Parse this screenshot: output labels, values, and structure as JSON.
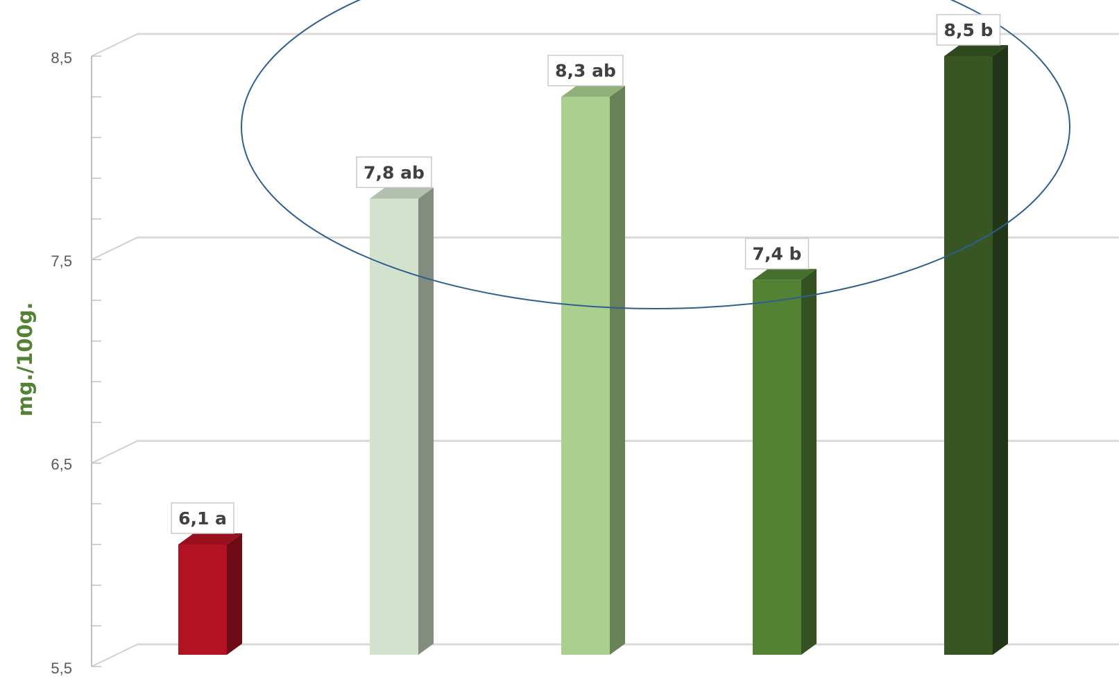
{
  "chart_data": {
    "type": "bar",
    "title": "",
    "xlabel": "",
    "ylabel": "mg./100g.",
    "ylim": [
      5.5,
      8.5
    ],
    "yticks": [
      "5,5",
      "6,5",
      "7,5",
      "8,5"
    ],
    "grid": true,
    "legend": "none",
    "style": "3d-column",
    "values": [
      6.1,
      7.8,
      8.3,
      7.4,
      8.5
    ],
    "data_labels": [
      "6,1  a",
      "7,8  ab",
      "8,3  ab",
      "7,4  b",
      "8,5  b"
    ],
    "colors": [
      "#b31222",
      "#d3e2cc",
      "#a9d08e",
      "#548235",
      "#375623"
    ],
    "annotation": {
      "shape": "ellipse",
      "color": "#2e5e8e"
    }
  }
}
